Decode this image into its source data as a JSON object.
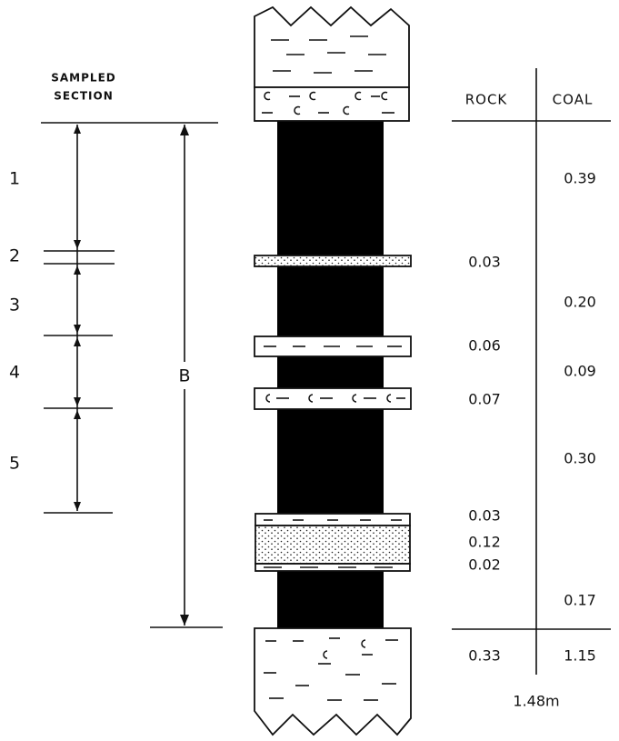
{
  "header": {
    "sampled_section": [
      "SAMPLED",
      "SECTION"
    ]
  },
  "units": [
    "1",
    "2",
    "3",
    "4",
    "5"
  ],
  "section_b": "B",
  "table": {
    "columns": [
      "ROCK",
      "COAL"
    ],
    "entries": [
      {
        "column": 1,
        "value": "0.39"
      },
      {
        "column": 0,
        "value": "0.03"
      },
      {
        "column": 1,
        "value": "0.20"
      },
      {
        "column": 0,
        "value": "0.06"
      },
      {
        "column": 1,
        "value": "0.09"
      },
      {
        "column": 0,
        "value": "0.07"
      },
      {
        "column": 1,
        "value": "0.30"
      },
      {
        "column": 0,
        "value": "0.03"
      },
      {
        "column": 0,
        "value": "0.12"
      },
      {
        "column": 0,
        "value": "0.02"
      },
      {
        "column": 1,
        "value": "0.17"
      }
    ],
    "totals": [
      "0.33",
      "1.15"
    ],
    "grand_total": "1.48m"
  }
}
